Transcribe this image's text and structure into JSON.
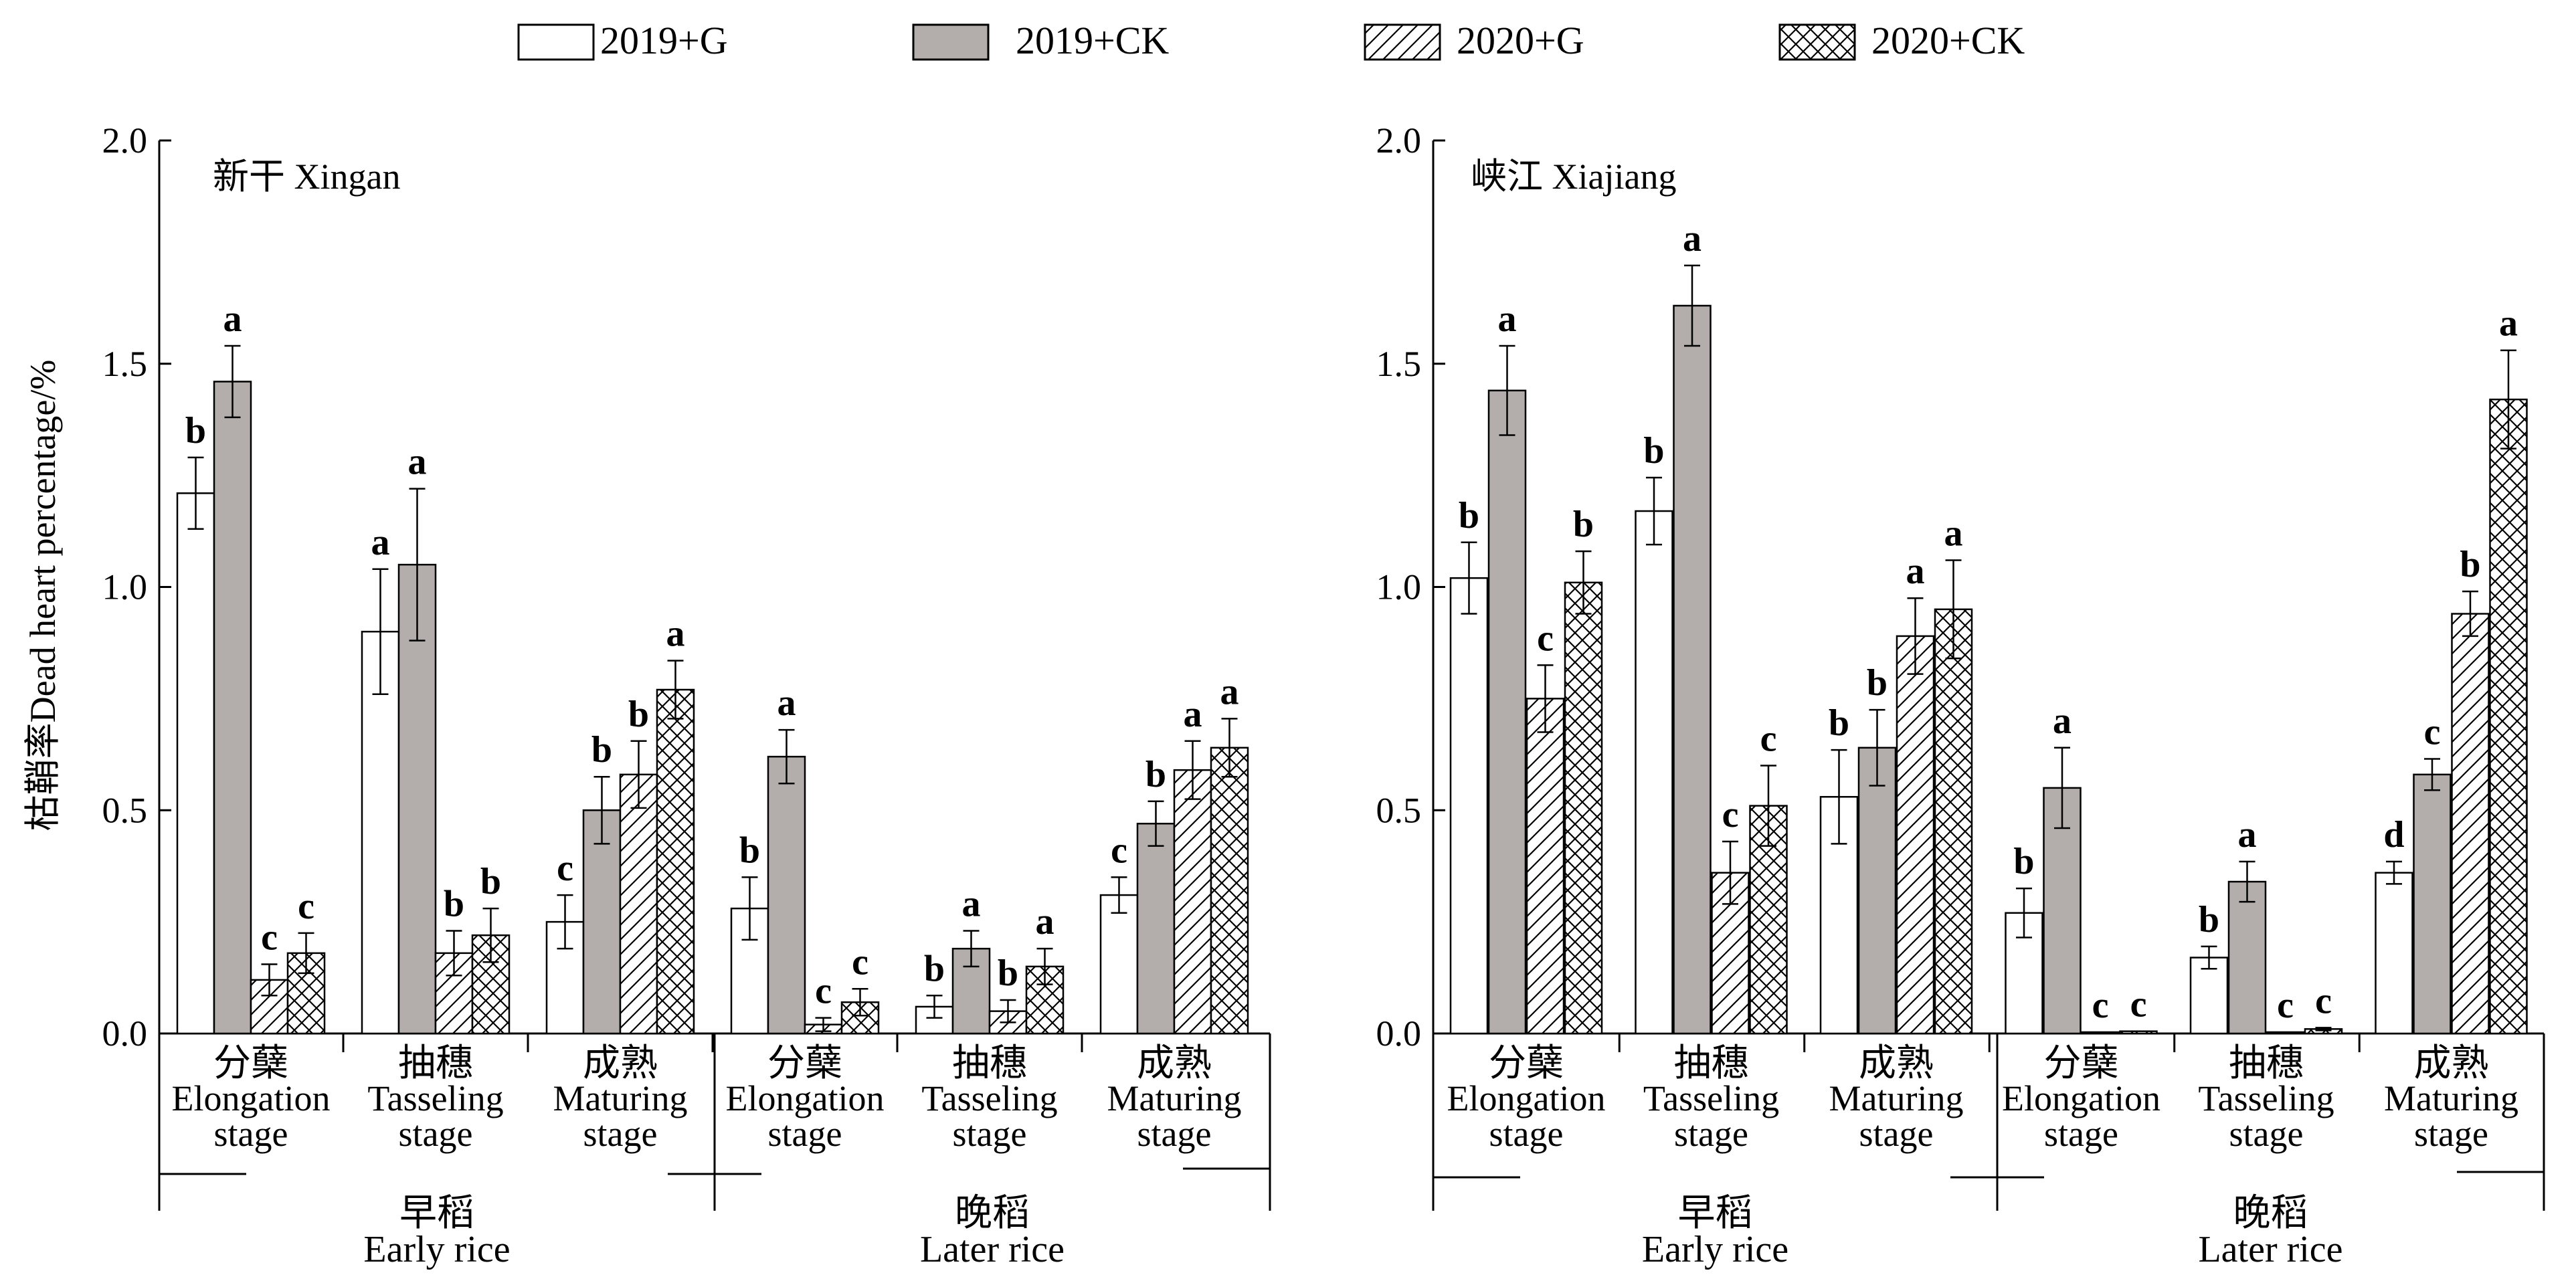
{
  "legend": [
    {
      "name": "2019+G",
      "fill": "#ffffff",
      "pattern": "none"
    },
    {
      "name": "2019+CK",
      "fill": "#b3adab",
      "pattern": "none"
    },
    {
      "name": "2020+G",
      "fill": "#ffffff",
      "pattern": "diagonal-hatch"
    },
    {
      "name": "2020+CK",
      "fill": "#ffffff",
      "pattern": "cross-hatch"
    }
  ],
  "ylabel": "枯鞘率Dead heart percentage/%",
  "chart_data": [
    {
      "type": "bar",
      "title": "新干  Xingan",
      "ylim": [
        0,
        2.0
      ],
      "yticks": [
        "0.0",
        "0.5",
        "1.0",
        "1.5",
        "2.0"
      ],
      "series_names": [
        "2019+G",
        "2019+CK",
        "2020+G",
        "2020+CK"
      ],
      "categories": [
        {
          "zh": "分蘖",
          "en1": "Elongation",
          "en2": "stage",
          "season": "早稻"
        },
        {
          "zh": "抽穗",
          "en1": "Tasseling",
          "en2": "stage",
          "season": "早稻"
        },
        {
          "zh": "成熟",
          "en1": "Maturing",
          "en2": "stage",
          "season": "早稻"
        },
        {
          "zh": "分蘖",
          "en1": "Elongation",
          "en2": "stage",
          "season": "晚稻"
        },
        {
          "zh": "抽穗",
          "en1": "Tasseling",
          "en2": "stage",
          "season": "晚稻"
        },
        {
          "zh": "成熟",
          "en1": "Maturing",
          "en2": "stage",
          "season": "晚稻"
        }
      ],
      "groups": [
        {
          "zh": "早稻",
          "en": "Early rice"
        },
        {
          "zh": "晚稻",
          "en": "Later rice"
        }
      ],
      "values": [
        [
          1.21,
          1.46,
          0.12,
          0.18
        ],
        [
          0.9,
          1.05,
          0.18,
          0.22
        ],
        [
          0.25,
          0.5,
          0.58,
          0.77
        ],
        [
          0.28,
          0.62,
          0.02,
          0.07
        ],
        [
          0.06,
          0.19,
          0.05,
          0.15
        ],
        [
          0.31,
          0.47,
          0.59,
          0.64
        ]
      ],
      "errors": [
        [
          0.08,
          0.08,
          0.035,
          0.045
        ],
        [
          0.14,
          0.17,
          0.05,
          0.06
        ],
        [
          0.06,
          0.075,
          0.075,
          0.065
        ],
        [
          0.07,
          0.06,
          0.015,
          0.03
        ],
        [
          0.025,
          0.04,
          0.025,
          0.04
        ],
        [
          0.04,
          0.05,
          0.065,
          0.065
        ]
      ],
      "letters": [
        [
          "b",
          "a",
          "c",
          "c"
        ],
        [
          "a",
          "a",
          "b",
          "b"
        ],
        [
          "c",
          "b",
          "b",
          "a"
        ],
        [
          "b",
          "a",
          "c",
          "c"
        ],
        [
          "b",
          "a",
          "b",
          "a"
        ],
        [
          "c",
          "b",
          "a",
          "a"
        ]
      ]
    },
    {
      "type": "bar",
      "title": "峡江  Xiajiang",
      "ylim": [
        0,
        2.0
      ],
      "yticks": [
        "0.0",
        "0.5",
        "1.0",
        "1.5",
        "2.0"
      ],
      "series_names": [
        "2019+G",
        "2019+CK",
        "2020+G",
        "2020+CK"
      ],
      "categories": [
        {
          "zh": "分蘖",
          "en1": "Elongation",
          "en2": "stage",
          "season": "早稻"
        },
        {
          "zh": "抽穗",
          "en1": "Tasseling",
          "en2": "stage",
          "season": "早稻"
        },
        {
          "zh": "成熟",
          "en1": "Maturing",
          "en2": "stage",
          "season": "早稻"
        },
        {
          "zh": "分蘖",
          "en1": "Elongation",
          "en2": "stage",
          "season": "晚稻"
        },
        {
          "zh": "抽穗",
          "en1": "Tasseling",
          "en2": "stage",
          "season": "晚稻"
        },
        {
          "zh": "成熟",
          "en1": "Maturing",
          "en2": "stage",
          "season": "晚稻"
        }
      ],
      "groups": [
        {
          "zh": "早稻",
          "en": "Early rice"
        },
        {
          "zh": "晚稻",
          "en": "Later rice"
        }
      ],
      "values": [
        [
          1.02,
          1.44,
          0.75,
          1.01
        ],
        [
          1.17,
          1.63,
          0.36,
          0.51
        ],
        [
          0.53,
          0.64,
          0.89,
          0.95
        ],
        [
          0.27,
          0.55,
          0.003,
          0.005
        ],
        [
          0.17,
          0.34,
          0.003,
          0.01
        ],
        [
          0.36,
          0.58,
          0.94,
          1.42
        ]
      ],
      "errors": [
        [
          0.08,
          0.1,
          0.075,
          0.07
        ],
        [
          0.075,
          0.09,
          0.07,
          0.09
        ],
        [
          0.105,
          0.085,
          0.085,
          0.11
        ],
        [
          0.055,
          0.09,
          0,
          0
        ],
        [
          0.025,
          0.045,
          0,
          0.003
        ],
        [
          0.025,
          0.035,
          0.05,
          0.11
        ]
      ],
      "letters": [
        [
          "b",
          "a",
          "c",
          "b"
        ],
        [
          "b",
          "a",
          "c",
          "c"
        ],
        [
          "b",
          "b",
          "a",
          "a"
        ],
        [
          "b",
          "a",
          "c",
          "c"
        ],
        [
          "b",
          "a",
          "c",
          "c"
        ],
        [
          "d",
          "c",
          "b",
          "a"
        ]
      ]
    }
  ]
}
